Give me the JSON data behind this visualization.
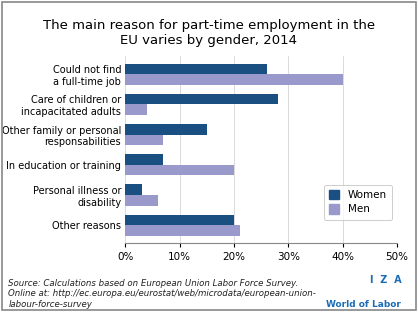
{
  "title": "The main reason for part-time employment in the\nEU varies by gender, 2014",
  "categories": [
    "Could not find\na full-time job",
    "Care of children or\nincapacitated adults",
    "Other family or personal\nresponsabilities",
    "In education or training",
    "Personal illness or\ndisability",
    "Other reasons"
  ],
  "women": [
    26,
    28,
    15,
    7,
    3,
    20
  ],
  "men": [
    40,
    4,
    7,
    20,
    6,
    21
  ],
  "women_color": "#1a4f82",
  "men_color": "#9999cc",
  "xlim": [
    0,
    50
  ],
  "xticks": [
    0,
    10,
    20,
    30,
    40,
    50
  ],
  "xtick_labels": [
    "0%",
    "10%",
    "20%",
    "30%",
    "40%",
    "50%"
  ],
  "source_text": "Source: Calculations based on European Union Labor Force Survey.\nOnline at: http://ec.europa.eu/eurostat/web/microdata/european-union-\nlabour-force-survey",
  "iza_line1": "I  Z  A",
  "iza_line2": "World of Labor",
  "bar_height": 0.35,
  "background_color": "#ffffff",
  "title_fontsize": 9.5,
  "label_fontsize": 7.0,
  "tick_fontsize": 7.5,
  "source_fontsize": 6.2,
  "legend_fontsize": 7.5
}
